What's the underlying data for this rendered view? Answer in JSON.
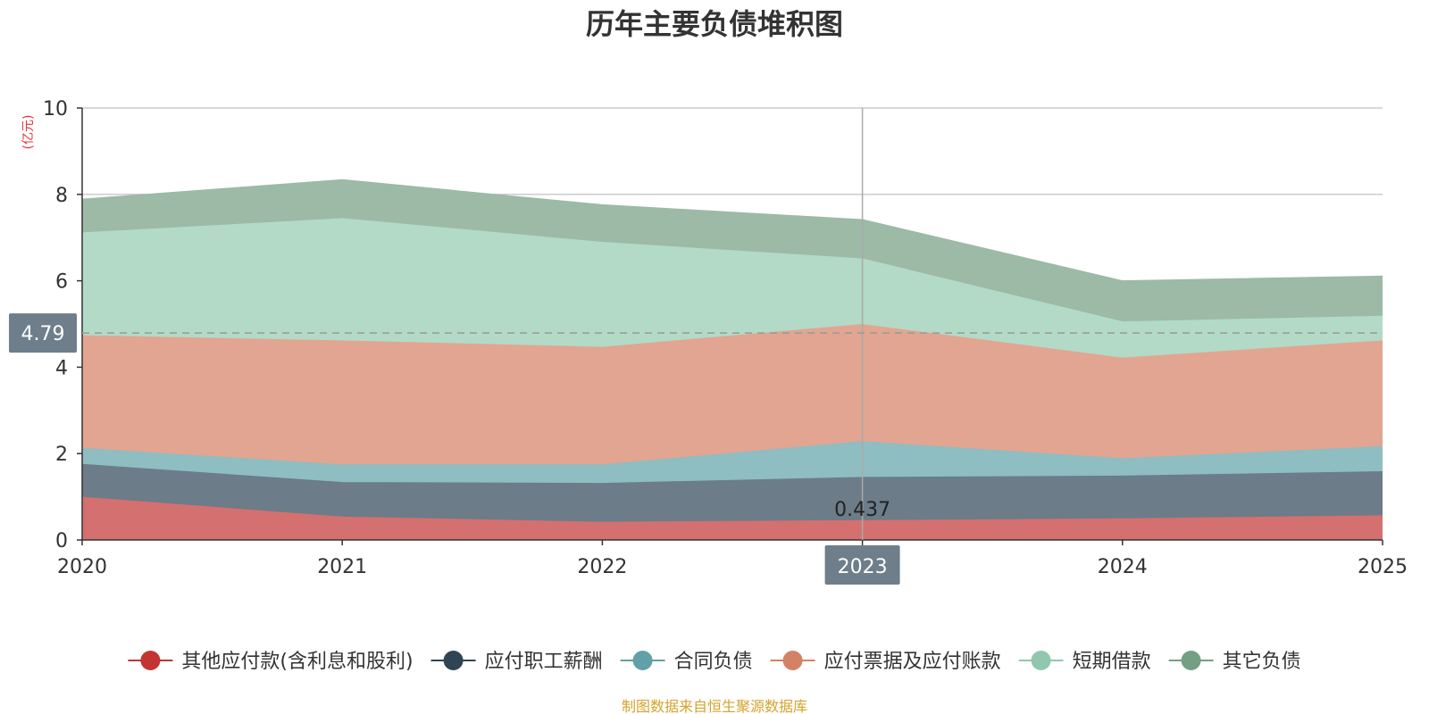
{
  "chart_data": {
    "type": "area",
    "stacked": true,
    "title": "历年主要负债堆积图",
    "unit_label": "(亿元)",
    "x": [
      "2020",
      "2021",
      "2022",
      "2023",
      "2024",
      "2025"
    ],
    "ylim": [
      0,
      10
    ],
    "yticks": [
      "0",
      "2",
      "4",
      "6",
      "8",
      "10"
    ],
    "grid": true,
    "legend_position": "bottom",
    "series": [
      {
        "name": "其他应付款(含利息和股利)",
        "color": "#c23531",
        "fill": "#d4706f",
        "values": [
          0.98,
          0.52,
          0.4,
          0.437,
          0.48,
          0.55
        ]
      },
      {
        "name": "应付职工薪酬",
        "color": "#2f4554",
        "fill": "#6c7c88",
        "values": [
          0.76,
          0.8,
          0.9,
          1.0,
          0.99,
          1.02
        ]
      },
      {
        "name": "合同负债",
        "color": "#61a0a8",
        "fill": "#8ebdc2",
        "values": [
          0.37,
          0.41,
          0.43,
          0.83,
          0.4,
          0.58
        ]
      },
      {
        "name": "应付票据及应付账款",
        "color": "#d48265",
        "fill": "#e1a591",
        "values": [
          2.61,
          2.87,
          2.72,
          2.71,
          2.33,
          2.45
        ]
      },
      {
        "name": "短期借款",
        "color": "#91c7ae",
        "fill": "#b2dac7",
        "values": [
          2.38,
          2.83,
          2.43,
          1.52,
          0.84,
          0.57
        ]
      },
      {
        "name": "其它负债",
        "color": "#749f83",
        "fill": "#9cbaa6",
        "values": [
          0.78,
          0.9,
          0.87,
          0.91,
          0.95,
          0.93
        ]
      }
    ],
    "highlight": {
      "category": "2023",
      "axis_pointer_value": "4.79",
      "data_label": "0.437",
      "reference_value": 4.79
    },
    "source_note": "制图数据来自恒生聚源数据库"
  }
}
